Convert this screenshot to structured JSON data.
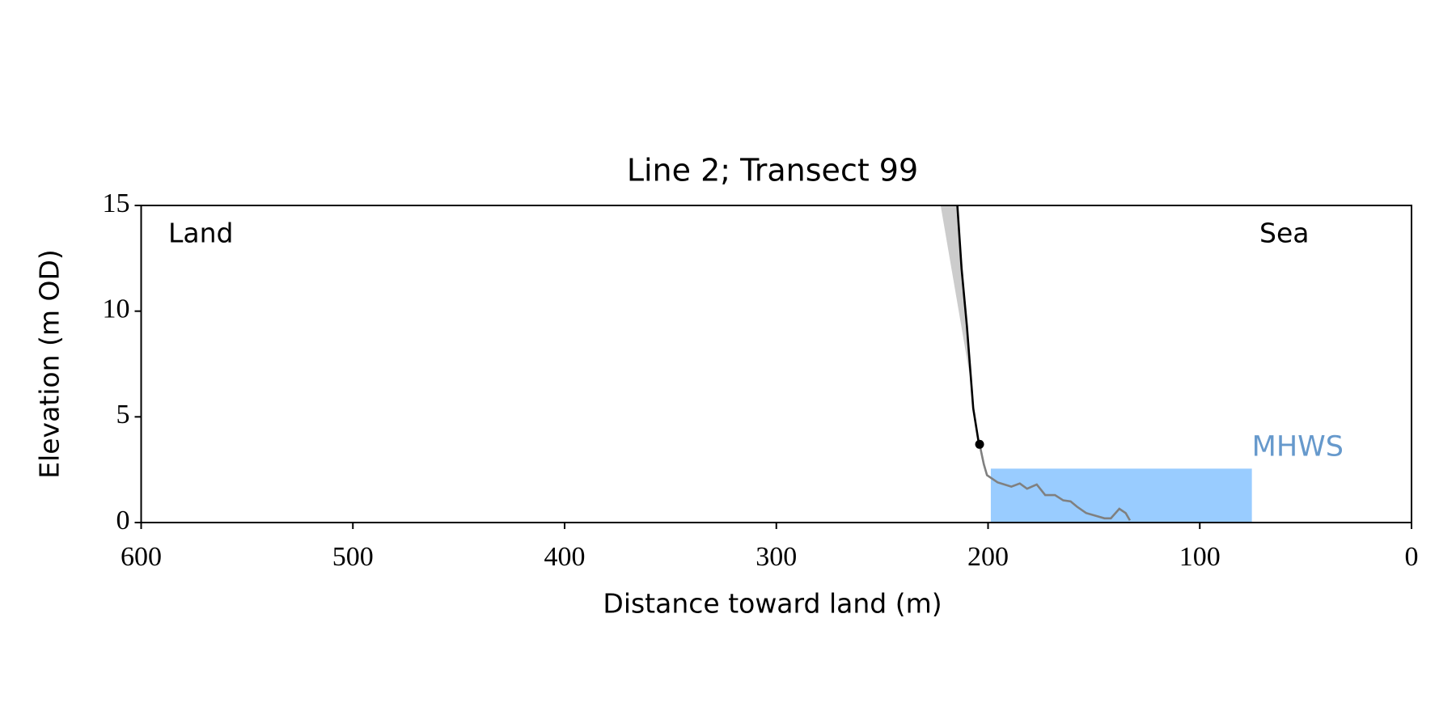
{
  "chart_data": {
    "type": "line",
    "title": "Line 2; Transect 99",
    "x_label": "Distance toward land (m)",
    "y_label": "Elevation (m OD)",
    "annotations": {
      "left": "Land",
      "right": "Sea"
    },
    "xlim": [
      600,
      0
    ],
    "xticks": [
      600,
      500,
      400,
      300,
      200,
      100,
      0
    ],
    "ylim": [
      0,
      15
    ],
    "yticks": [
      0,
      5,
      10,
      15
    ],
    "grid": false,
    "band": {
      "x": [
        222.4,
        214.5,
        212,
        210,
        207
      ],
      "values": [
        15,
        15,
        12,
        9.3,
        6
      ],
      "color": "#cccccc"
    },
    "series": [
      {
        "color": "#000000",
        "x": [
          214.5,
          212.5,
          210,
          207,
          204.4
        ],
        "values": [
          15,
          12,
          9.3,
          5.4,
          3.77
        ]
      },
      {
        "color": "#808080",
        "x": [
          204,
          202,
          200.5,
          195.5,
          189,
          185,
          181.6,
          177,
          173,
          168.4,
          164.5,
          161,
          158,
          153.7,
          145,
          142,
          138,
          135,
          133
        ],
        "values": [
          3.7,
          2.76,
          2.24,
          1.9,
          1.7,
          1.85,
          1.6,
          1.8,
          1.3,
          1.3,
          1.05,
          1.0,
          0.75,
          0.45,
          0.2,
          0.2,
          0.65,
          0.45,
          0.1
        ]
      }
    ],
    "point": {
      "x": 204,
      "value": 3.7,
      "color": "#000000"
    },
    "mhws": {
      "label": "MHWS",
      "x": [
        198.7,
        75.4
      ],
      "value": 2.55,
      "color": "#99ccff",
      "label_color": "#6699cc"
    }
  }
}
